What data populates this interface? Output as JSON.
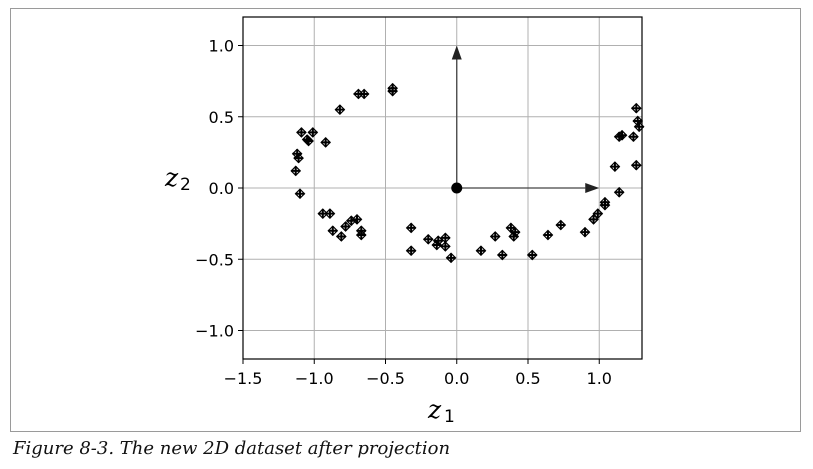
{
  "caption": "Figure 8-3. The new 2D dataset after projection",
  "chart_data": {
    "type": "scatter",
    "title": "",
    "xlabel": "z",
    "xlabel_sub": "1",
    "ylabel": "z",
    "ylabel_sub": "2",
    "xlim": [
      -1.5,
      1.3
    ],
    "ylim": [
      -1.2,
      1.2
    ],
    "xticks": [
      -1.5,
      -1.0,
      -0.5,
      0.0,
      0.5,
      1.0
    ],
    "xtick_labels": [
      "−1.5",
      "−1.0",
      "−0.5",
      "0.0",
      "0.5",
      "1.0"
    ],
    "yticks": [
      -1.0,
      -0.5,
      0.0,
      0.5,
      1.0
    ],
    "ytick_labels": [
      "−1.0",
      "−0.5",
      "0.0",
      "0.5",
      "1.0"
    ],
    "grid": true,
    "marker": "plus",
    "color": "#000000",
    "origin_point": [
      0.0,
      0.0
    ],
    "arrows": [
      {
        "from": [
          0.0,
          0.0
        ],
        "to": [
          1.0,
          0.0
        ]
      },
      {
        "from": [
          0.0,
          0.0
        ],
        "to": [
          0.0,
          1.0
        ]
      }
    ],
    "points": [
      [
        -0.45,
        0.7
      ],
      [
        -0.45,
        0.68
      ],
      [
        -0.69,
        0.66
      ],
      [
        -0.65,
        0.66
      ],
      [
        -0.82,
        0.55
      ],
      [
        -1.09,
        0.39
      ],
      [
        -1.01,
        0.39
      ],
      [
        -1.05,
        0.34
      ],
      [
        -1.04,
        0.33
      ],
      [
        -0.92,
        0.32
      ],
      [
        -1.12,
        0.24
      ],
      [
        -1.11,
        0.21
      ],
      [
        -1.13,
        0.12
      ],
      [
        -1.1,
        -0.04
      ],
      [
        -0.94,
        -0.18
      ],
      [
        -0.89,
        -0.18
      ],
      [
        -0.7,
        -0.22
      ],
      [
        -0.74,
        -0.23
      ],
      [
        -0.78,
        -0.27
      ],
      [
        -0.87,
        -0.3
      ],
      [
        -0.81,
        -0.34
      ],
      [
        -0.67,
        -0.3
      ],
      [
        -0.67,
        -0.33
      ],
      [
        -0.32,
        -0.28
      ],
      [
        -0.32,
        -0.44
      ],
      [
        -0.2,
        -0.36
      ],
      [
        -0.13,
        -0.37
      ],
      [
        -0.14,
        -0.4
      ],
      [
        -0.08,
        -0.35
      ],
      [
        -0.08,
        -0.41
      ],
      [
        -0.04,
        -0.49
      ],
      [
        0.17,
        -0.44
      ],
      [
        0.27,
        -0.34
      ],
      [
        0.32,
        -0.47
      ],
      [
        0.38,
        -0.28
      ],
      [
        0.41,
        -0.31
      ],
      [
        0.4,
        -0.34
      ],
      [
        0.53,
        -0.47
      ],
      [
        0.64,
        -0.33
      ],
      [
        0.73,
        -0.26
      ],
      [
        0.9,
        -0.31
      ],
      [
        0.96,
        -0.22
      ],
      [
        0.99,
        -0.18
      ],
      [
        1.04,
        -0.1
      ],
      [
        1.04,
        -0.12
      ],
      [
        1.11,
        0.15
      ],
      [
        1.14,
        0.36
      ],
      [
        1.16,
        0.37
      ],
      [
        1.26,
        0.56
      ],
      [
        1.24,
        0.36
      ],
      [
        1.27,
        0.47
      ],
      [
        1.28,
        0.43
      ],
      [
        1.26,
        0.16
      ],
      [
        1.14,
        -0.03
      ]
    ]
  }
}
